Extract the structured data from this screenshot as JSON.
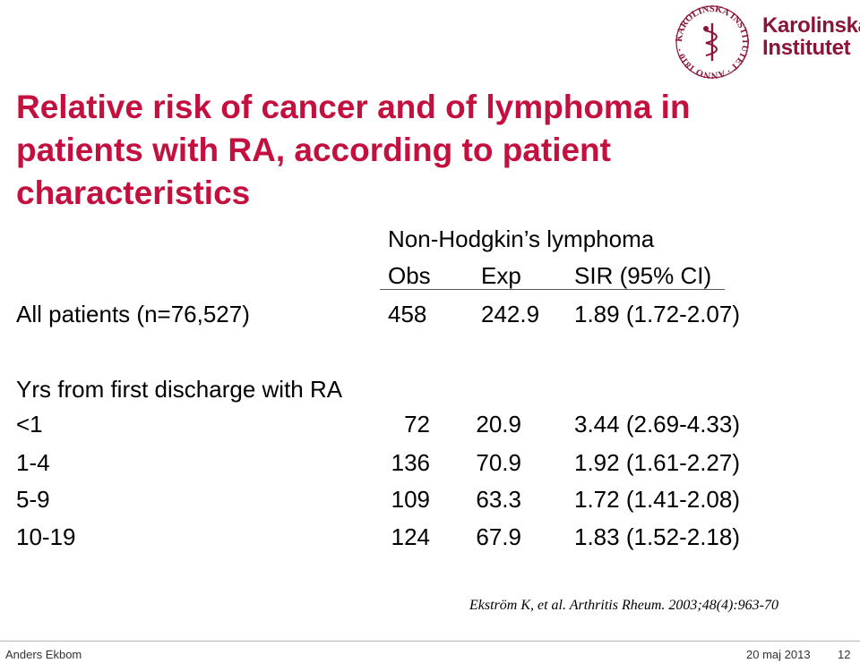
{
  "logo": {
    "seal_text": "KAROLINSKA INSTITUTET · ANNO 1810 ·",
    "name_line1": "Karolinska",
    "name_line2": "Institutet",
    "color": "#8a1538"
  },
  "title": "Relative risk of cancer and of lymphoma in patients with RA, according to patient characteristics",
  "table": {
    "group_header": "Non-Hodgkin’s lymphoma",
    "columns": [
      "Obs",
      "Exp",
      "SIR (95% CI)"
    ],
    "all_patients": {
      "label": "All patients (n=76,527)",
      "obs": "458",
      "exp": "242.9",
      "sir": "1.89 (1.72-2.07)"
    },
    "section_label": "Yrs from first discharge with RA",
    "rows": [
      {
        "label": "<1",
        "obs": "72",
        "exp": "20.9",
        "sir": "3.44 (2.69-4.33)"
      },
      {
        "label": "1-4",
        "obs": "136",
        "exp": "70.9",
        "sir": "1.92 (1.61-2.27)"
      },
      {
        "label": "5-9",
        "obs": "109",
        "exp": "63.3",
        "sir": "1.72 (1.41-2.08)"
      },
      {
        "label": "10-19",
        "obs": "124",
        "exp": "67.9",
        "sir": "1.83 (1.52-2.18)"
      }
    ]
  },
  "citation": "Ekström K, et al. Arthritis Rheum. 2003;48(4):963-70",
  "footer": {
    "author": "Anders Ekbom",
    "date": "20 maj 2013",
    "page": "12"
  },
  "colors": {
    "title": "#c3103e",
    "footer_line": "#b7b7b7"
  }
}
